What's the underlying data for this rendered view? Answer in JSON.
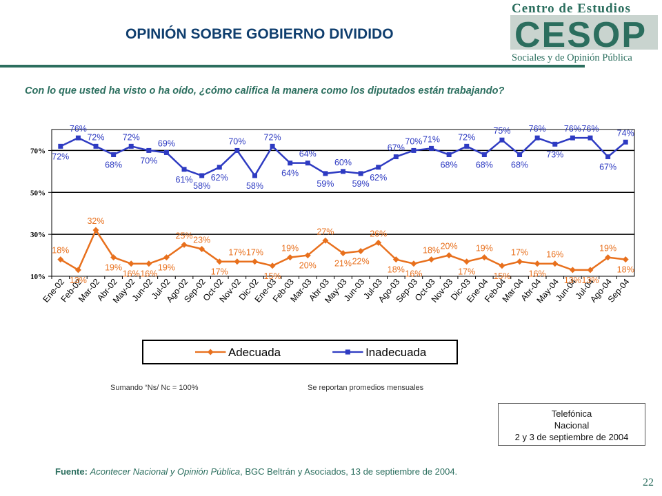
{
  "slide": {
    "title": "OPINIÓN SOBRE GOBIERNO DIVIDIDO",
    "question": "Con lo que usted ha visto o ha oído, ¿cómo califica la manera como los diputados están trabajando?",
    "note_left": "Sumando “Ns/ Nc = 100%",
    "note_right": "Se reportan promedios mensuales",
    "method_line1": "Telefónica",
    "method_line2": "Nacional",
    "method_line3": "2 y 3 de septiembre de 2004",
    "source_label": "Fuente:",
    "source_italic": "Acontecer Nacional y Opinión Pública",
    "source_rest": ", BGC Beltrán y Asociados, 13 de septiembre de 2004.",
    "page_number": "22"
  },
  "logo": {
    "line1": "Centro de Estudios",
    "mark": "CESOP",
    "line2": "Sociales y de Opinión Pública",
    "color_dark": "#2b6e5e",
    "color_light": "#c9d4cf"
  },
  "chart_data": {
    "type": "line",
    "categories": [
      "Ene-02",
      "Feb-02",
      "Mar-02",
      "Abr-02",
      "May-02",
      "Jun-02",
      "Jul-02",
      "Ago-02",
      "Sep-02",
      "Oct-02",
      "Nov-02",
      "Dic-02",
      "Ene-03",
      "Feb-03",
      "Mar-03",
      "Abr-03",
      "May-03",
      "Jun-03",
      "Jul-03",
      "Ago-03",
      "Sep-03",
      "Oct-03",
      "Nov-03",
      "Dic-03",
      "Ene-04",
      "Feb-04",
      "Mar-04",
      "Abr-04",
      "May-04",
      "Jun-04",
      "Jul-04",
      "Ago-04",
      "Sep-04"
    ],
    "y_ticks": [
      {
        "value": 10,
        "label": "10%"
      },
      {
        "value": 30,
        "label": "30%"
      },
      {
        "value": 50,
        "label": "50%"
      },
      {
        "value": 70,
        "label": "70%"
      }
    ],
    "ylim": [
      10,
      80
    ],
    "gridlines": [
      30,
      50,
      70
    ],
    "legend_position": "bottom",
    "series": [
      {
        "name": "Adecuada",
        "color": "#e8701d",
        "marker": "diamond",
        "values": [
          18,
          13,
          32,
          19,
          16,
          16,
          19,
          25,
          23,
          17,
          17,
          17,
          15,
          19,
          20,
          27,
          21,
          22,
          26,
          18,
          16,
          18,
          20,
          17,
          19,
          15,
          17,
          16,
          16,
          13,
          13,
          19,
          18
        ],
        "labels": [
          "18%",
          "13%",
          "32%",
          "19%",
          "16%",
          "16%",
          "19%",
          "25%",
          "23%",
          "17%",
          "17%",
          "17%",
          "15%",
          "19%",
          "20%",
          "27%",
          "21%",
          "22%",
          "26%",
          "18%",
          "16%",
          "18%",
          "20%",
          "17%",
          "19%",
          "15%",
          "17%",
          "16%",
          "16%",
          "13%",
          "13%",
          "19%",
          "18%"
        ]
      },
      {
        "name": "Inadecuada",
        "color": "#2e3bc2",
        "marker": "square",
        "values": [
          72,
          76,
          72,
          68,
          72,
          70,
          69,
          61,
          58,
          62,
          70,
          58,
          72,
          64,
          64,
          59,
          60,
          59,
          62,
          67,
          70,
          71,
          68,
          72,
          68,
          75,
          68,
          76,
          73,
          76,
          76,
          67,
          74
        ],
        "labels": [
          "72%",
          "76%",
          "72%",
          "68%",
          "72%",
          "70%",
          "69%",
          "61%",
          "58%",
          "62%",
          "70%",
          "58%",
          "72%",
          "64%",
          "64%",
          "59%",
          "60%",
          "59%",
          "62%",
          "67%",
          "70%",
          "71%",
          "68%",
          "72%",
          "68%",
          "75%",
          "68%",
          "76%",
          "73%",
          "76%",
          "76%",
          "67%",
          "74%"
        ]
      }
    ]
  }
}
